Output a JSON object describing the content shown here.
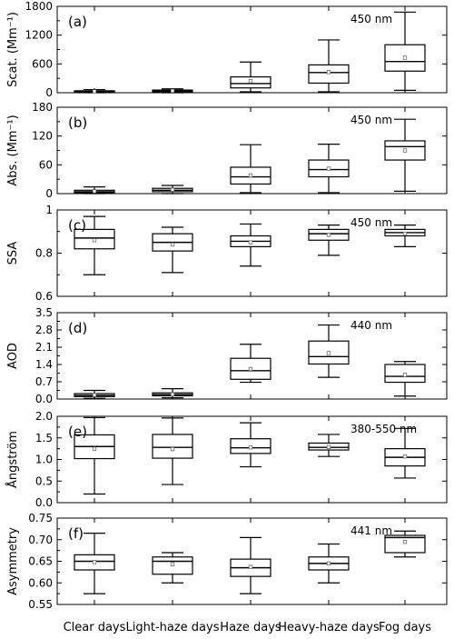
{
  "categories": [
    "Clear days",
    "Light-haze days",
    "Haze days",
    "Heavy-haze days",
    "Fog days"
  ],
  "chart_data": [
    {
      "type": "box",
      "panel_label": "(a)",
      "wavelength": "450 nm",
      "ylabel": "Scat. (Mm⁻¹)",
      "ylim": [
        0,
        1800
      ],
      "yticks": [
        0,
        600,
        1200,
        1800
      ],
      "boxes": [
        {
          "whisker_low": 0,
          "q1": 10,
          "median": 25,
          "q3": 40,
          "whisker_high": 65,
          "mean": 30
        },
        {
          "whisker_low": 0,
          "q1": 15,
          "median": 35,
          "q3": 55,
          "whisker_high": 80,
          "mean": 40
        },
        {
          "whisker_low": 20,
          "q1": 100,
          "median": 190,
          "q3": 330,
          "whisker_high": 640,
          "mean": 240
        },
        {
          "whisker_low": 20,
          "q1": 200,
          "median": 420,
          "q3": 580,
          "whisker_high": 1100,
          "mean": 430
        },
        {
          "whisker_low": 50,
          "q1": 450,
          "median": 650,
          "q3": 1000,
          "whisker_high": 1680,
          "mean": 730
        }
      ]
    },
    {
      "type": "box",
      "panel_label": "(b)",
      "wavelength": "450 nm",
      "ylabel": "Abs. (Mm⁻¹)",
      "ylim": [
        0,
        180
      ],
      "yticks": [
        0,
        60,
        120,
        180
      ],
      "boxes": [
        {
          "whisker_low": 0,
          "q1": 2,
          "median": 4,
          "q3": 7,
          "whisker_high": 14,
          "mean": 5
        },
        {
          "whisker_low": 0,
          "q1": 4,
          "median": 7,
          "q3": 11,
          "whisker_high": 17,
          "mean": 8
        },
        {
          "whisker_low": 2,
          "q1": 20,
          "median": 35,
          "q3": 55,
          "whisker_high": 102,
          "mean": 38
        },
        {
          "whisker_low": 2,
          "q1": 35,
          "median": 50,
          "q3": 70,
          "whisker_high": 103,
          "mean": 52
        },
        {
          "whisker_low": 5,
          "q1": 70,
          "median": 98,
          "q3": 110,
          "whisker_high": 155,
          "mean": 90
        }
      ]
    },
    {
      "type": "box",
      "panel_label": "(c)",
      "wavelength": "450 nm",
      "ylabel": "SSA",
      "ylim": [
        0.6,
        1.0
      ],
      "yticks": [
        0.6,
        0.8,
        1.0
      ],
      "boxes": [
        {
          "whisker_low": 0.7,
          "q1": 0.82,
          "median": 0.87,
          "q3": 0.91,
          "whisker_high": 0.97,
          "mean": 0.86
        },
        {
          "whisker_low": 0.71,
          "q1": 0.81,
          "median": 0.85,
          "q3": 0.89,
          "whisker_high": 0.92,
          "mean": 0.84
        },
        {
          "whisker_low": 0.74,
          "q1": 0.83,
          "median": 0.855,
          "q3": 0.88,
          "whisker_high": 0.935,
          "mean": 0.85
        },
        {
          "whisker_low": 0.79,
          "q1": 0.86,
          "median": 0.89,
          "q3": 0.91,
          "whisker_high": 0.93,
          "mean": 0.885
        },
        {
          "whisker_low": 0.83,
          "q1": 0.88,
          "median": 0.895,
          "q3": 0.91,
          "whisker_high": 0.93,
          "mean": 0.89
        }
      ]
    },
    {
      "type": "box",
      "panel_label": "(d)",
      "wavelength": "440 nm",
      "ylabel": "AOD",
      "ylim": [
        0,
        3.5
      ],
      "yticks": [
        0.0,
        0.7,
        1.4,
        2.1,
        2.8,
        3.5
      ],
      "ytick_labels": [
        "0.0",
        "0.7",
        "1.4",
        "2.1",
        "2.8",
        "3.5"
      ],
      "boxes": [
        {
          "whisker_low": 0.03,
          "q1": 0.1,
          "median": 0.15,
          "q3": 0.22,
          "whisker_high": 0.35,
          "mean": 0.16
        },
        {
          "whisker_low": 0.05,
          "q1": 0.13,
          "median": 0.18,
          "q3": 0.25,
          "whisker_high": 0.42,
          "mean": 0.19
        },
        {
          "whisker_low": 0.68,
          "q1": 0.8,
          "median": 1.15,
          "q3": 1.65,
          "whisker_high": 2.22,
          "mean": 1.22
        },
        {
          "whisker_low": 0.88,
          "q1": 1.42,
          "median": 1.72,
          "q3": 2.35,
          "whisker_high": 3.0,
          "mean": 1.86
        },
        {
          "whisker_low": 0.12,
          "q1": 0.68,
          "median": 0.92,
          "q3": 1.4,
          "whisker_high": 1.52,
          "mean": 0.98
        }
      ]
    },
    {
      "type": "box",
      "panel_label": "(e)",
      "wavelength": "380-550 nm",
      "ylabel": "Ångström",
      "ylim": [
        0,
        2.0
      ],
      "yticks": [
        0.0,
        0.5,
        1.0,
        1.5,
        2.0
      ],
      "ytick_labels": [
        "0.0",
        "0.5",
        "1.0",
        "1.5",
        "2.0"
      ],
      "boxes": [
        {
          "whisker_low": 0.2,
          "q1": 1.02,
          "median": 1.3,
          "q3": 1.57,
          "whisker_high": 1.97,
          "mean": 1.25
        },
        {
          "whisker_low": 0.42,
          "q1": 1.03,
          "median": 1.28,
          "q3": 1.58,
          "whisker_high": 1.96,
          "mean": 1.24
        },
        {
          "whisker_low": 0.83,
          "q1": 1.14,
          "median": 1.27,
          "q3": 1.48,
          "whisker_high": 1.85,
          "mean": 1.28
        },
        {
          "whisker_low": 1.07,
          "q1": 1.22,
          "median": 1.28,
          "q3": 1.38,
          "whisker_high": 1.58,
          "mean": 1.29
        },
        {
          "whisker_low": 0.57,
          "q1": 0.85,
          "median": 1.05,
          "q3": 1.25,
          "whisker_high": 1.72,
          "mean": 1.07
        }
      ]
    },
    {
      "type": "box",
      "panel_label": "(f)",
      "wavelength": "441 nm",
      "ylabel": "Asymmetry",
      "ylim": [
        0.55,
        0.75
      ],
      "yticks": [
        0.55,
        0.6,
        0.65,
        0.7,
        0.75
      ],
      "ytick_labels": [
        "0.55",
        "0.60",
        "0.65",
        "0.70",
        "0.75"
      ],
      "boxes": [
        {
          "whisker_low": 0.575,
          "q1": 0.63,
          "median": 0.65,
          "q3": 0.665,
          "whisker_high": 0.715,
          "mean": 0.648
        },
        {
          "whisker_low": 0.6,
          "q1": 0.62,
          "median": 0.65,
          "q3": 0.66,
          "whisker_high": 0.67,
          "mean": 0.643
        },
        {
          "whisker_low": 0.575,
          "q1": 0.615,
          "median": 0.635,
          "q3": 0.655,
          "whisker_high": 0.705,
          "mean": 0.637
        },
        {
          "whisker_low": 0.6,
          "q1": 0.63,
          "median": 0.645,
          "q3": 0.66,
          "whisker_high": 0.69,
          "mean": 0.645
        },
        {
          "whisker_low": 0.66,
          "q1": 0.67,
          "median": 0.705,
          "q3": 0.71,
          "whisker_high": 0.72,
          "mean": 0.695
        }
      ]
    }
  ]
}
